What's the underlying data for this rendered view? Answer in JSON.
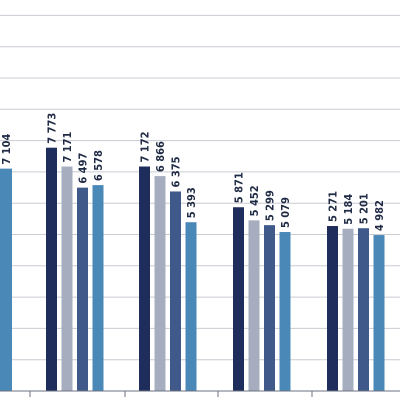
{
  "chart_data": {
    "type": "bar",
    "title": "",
    "xlabel": "",
    "ylabel": "",
    "ylim": [
      0,
      12500
    ],
    "grid": true,
    "grid_step": 1000,
    "colors": [
      "#1f2d5c",
      "#a6adbf",
      "#3f5a8a",
      "#4a88b8"
    ],
    "groups": [
      {
        "values": [
          null,
          null,
          null,
          7104
        ]
      },
      {
        "values": [
          7773,
          7171,
          6497,
          6578
        ]
      },
      {
        "values": [
          7172,
          6866,
          6375,
          5393
        ]
      },
      {
        "values": [
          5871,
          5452,
          5299,
          5079
        ]
      },
      {
        "values": [
          5271,
          5184,
          5201,
          4982
        ]
      }
    ],
    "labels": [
      [
        null,
        null,
        null,
        "7 104"
      ],
      [
        "7 773",
        "7 171",
        "6 497",
        "6 578"
      ],
      [
        "7 172",
        "6 866",
        "6 375",
        "5 393"
      ],
      [
        "5 871",
        "5 452",
        "5 299",
        "5 079"
      ],
      [
        "5 271",
        "5 184",
        "5 201",
        "4 982"
      ]
    ]
  }
}
